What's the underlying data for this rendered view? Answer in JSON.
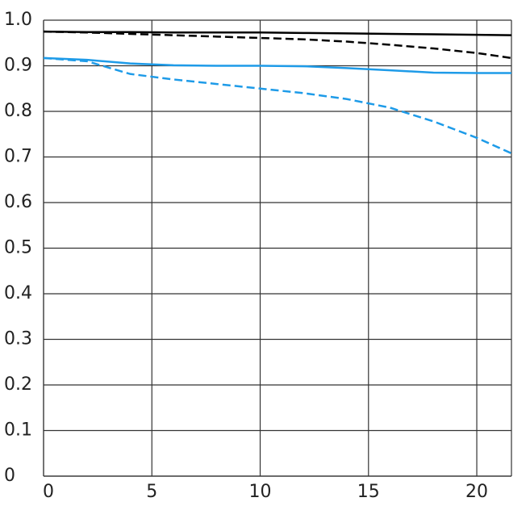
{
  "chart_data": {
    "type": "line",
    "x": [
      0,
      2,
      4,
      6,
      8,
      10,
      12,
      14,
      16,
      18,
      20,
      21.6
    ],
    "series": [
      {
        "color": "#000000",
        "dashed": false,
        "values": [
          0.975,
          0.974,
          0.974,
          0.973,
          0.973,
          0.973,
          0.972,
          0.971,
          0.97,
          0.969,
          0.968,
          0.967
        ]
      },
      {
        "color": "#000000",
        "dashed": true,
        "values": [
          0.975,
          0.973,
          0.97,
          0.967,
          0.964,
          0.961,
          0.958,
          0.953,
          0.946,
          0.938,
          0.928,
          0.917
        ]
      },
      {
        "color": "#1e9be8",
        "dashed": false,
        "values": [
          0.917,
          0.913,
          0.905,
          0.901,
          0.9,
          0.9,
          0.899,
          0.895,
          0.89,
          0.885,
          0.884,
          0.884
        ]
      },
      {
        "color": "#1e9be8",
        "dashed": true,
        "values": [
          0.917,
          0.91,
          0.882,
          0.87,
          0.86,
          0.85,
          0.84,
          0.827,
          0.808,
          0.778,
          0.742,
          0.708
        ]
      }
    ],
    "xlim": [
      0,
      21.6
    ],
    "xticks": [
      0,
      5,
      10,
      15,
      20
    ],
    "ylim": [
      0,
      1
    ],
    "yticks": [
      0,
      0.1,
      0.2,
      0.3,
      0.4,
      0.5,
      0.6,
      0.7,
      0.8,
      0.9,
      {
        "value": 1,
        "label": "1.0"
      }
    ],
    "grid": true
  }
}
